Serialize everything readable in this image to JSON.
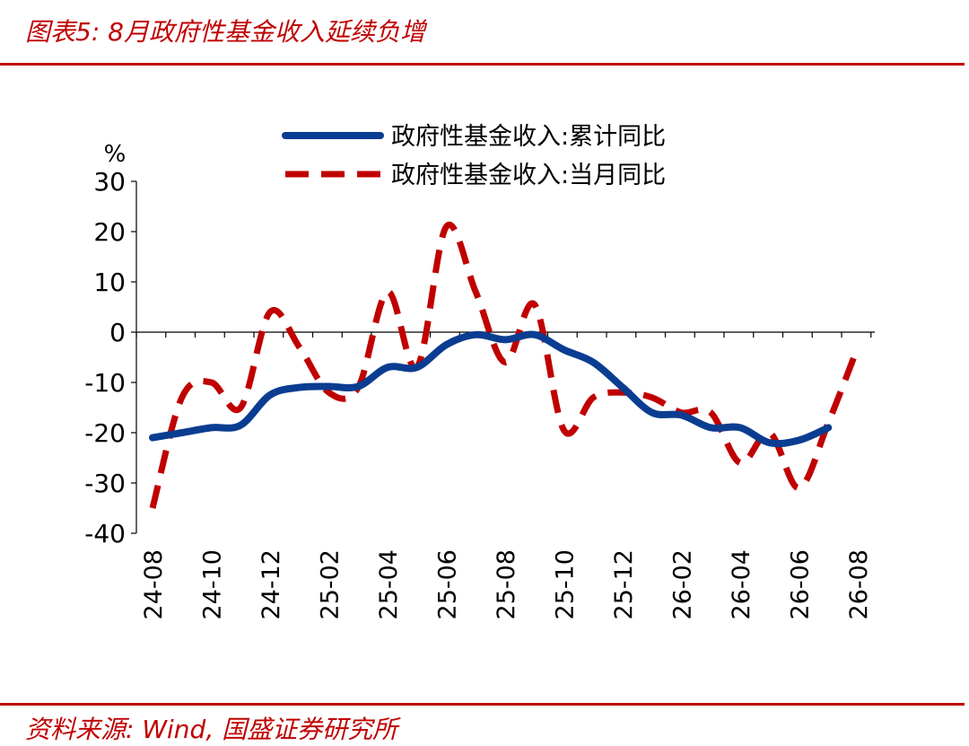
{
  "header": {
    "title": "图表5: 8月政府性基金收入延续负增"
  },
  "footer": {
    "source": "资料来源: Wind, 国盛证券研究所"
  },
  "chart_data": {
    "type": "line",
    "ylabel": "%",
    "ylim": [
      -40,
      30
    ],
    "yticks": [
      30,
      20,
      10,
      0,
      -10,
      -20,
      -30,
      -40
    ],
    "x_tick_labels": [
      "24-08",
      "24-10",
      "24-12",
      "25-02",
      "25-04",
      "25-06",
      "25-08",
      "25-10",
      "25-12",
      "26-02",
      "26-04",
      "26-06",
      "26-08"
    ],
    "x": [
      "24-08",
      "24-09",
      "24-10",
      "24-11",
      "24-12",
      "25-01",
      "25-02",
      "25-03",
      "25-04",
      "25-05",
      "25-06",
      "25-07",
      "25-08",
      "25-09",
      "25-10",
      "25-11",
      "25-12",
      "26-01",
      "26-02",
      "26-03",
      "26-04",
      "26-05",
      "26-06",
      "26-07",
      "26-08"
    ],
    "legend_position": "top-center",
    "series": [
      {
        "name": "政府性基金收入:累计同比",
        "color": "#0a3d91",
        "style": "solid",
        "values": [
          -21,
          -20,
          -19,
          -18.5,
          -12.5,
          -11,
          -10.8,
          -10.8,
          -7,
          -7,
          -2.5,
          -0.5,
          -1.5,
          -0.5,
          -3.5,
          -6,
          -11,
          -16,
          -16.5,
          -19,
          -19,
          -22,
          -21.5,
          -19,
          null
        ]
      },
      {
        "name": "政府性基金收入:当月同比",
        "color": "#c00000",
        "style": "dashed",
        "values": [
          -35,
          -13,
          -10,
          -15,
          4,
          -3,
          -12,
          -11,
          8,
          -7,
          21,
          8,
          -6,
          5.5,
          -19.5,
          -13,
          -12,
          -13,
          -16,
          -16,
          -26,
          -20,
          -31,
          -18,
          -3
        ]
      }
    ]
  }
}
